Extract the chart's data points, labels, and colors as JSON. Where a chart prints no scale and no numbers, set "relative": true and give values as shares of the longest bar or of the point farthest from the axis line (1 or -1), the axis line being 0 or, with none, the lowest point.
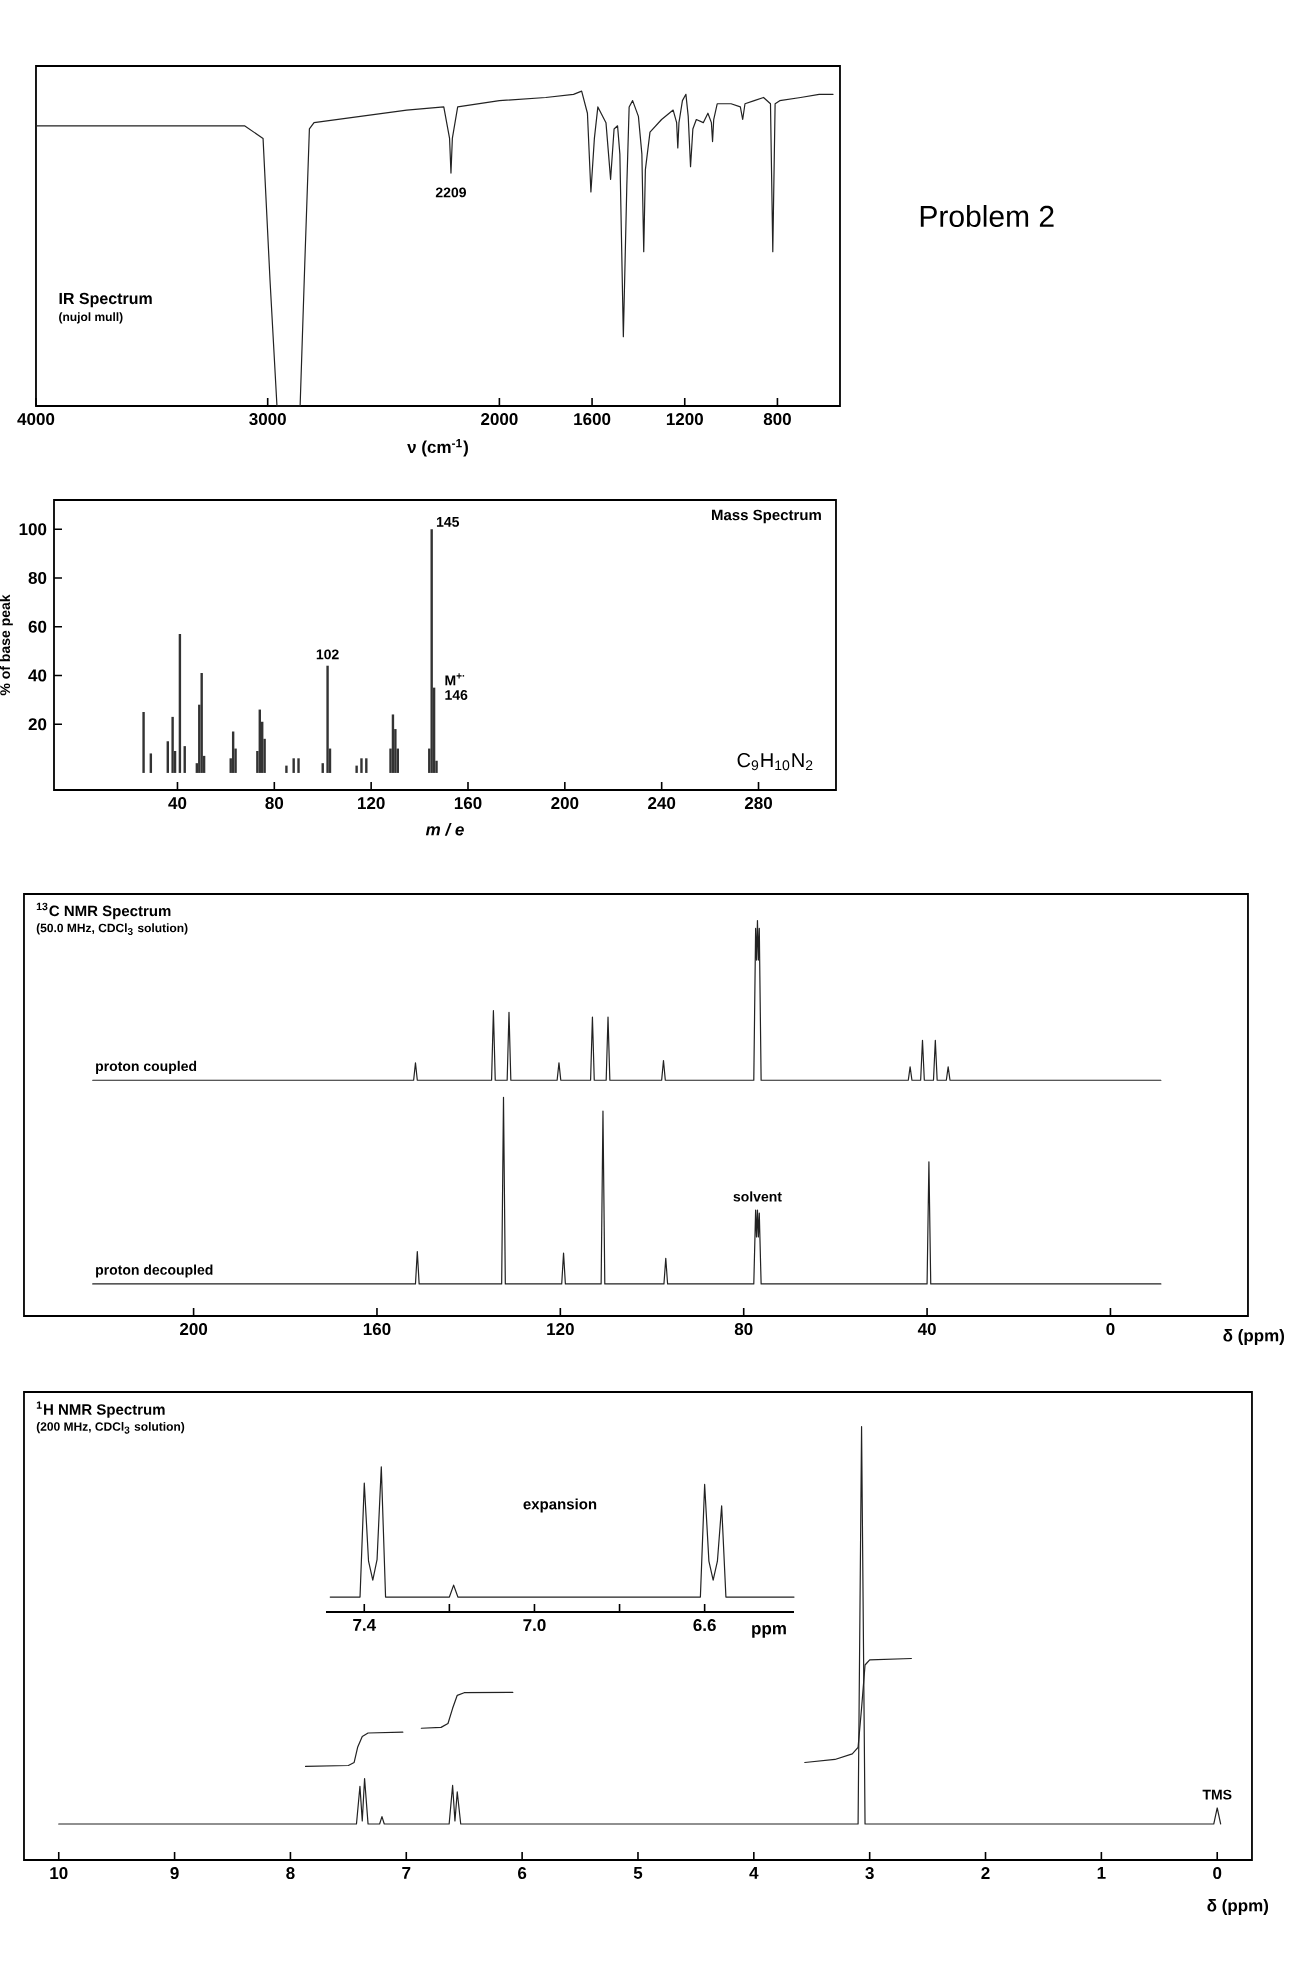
{
  "chart_data": [
    {
      "type": "line",
      "relative": true,
      "title": "IR Spectrum",
      "subtitle": "(nujol mull)",
      "xlabel": "ν (cm$^{-1}$)",
      "tick_labels": "x",
      "xlim": [
        4000,
        530
      ],
      "xticks": [
        4000,
        3000,
        2000,
        1600,
        1200,
        800
      ],
      "x": [
        4000,
        3500,
        3100,
        3020,
        2990,
        2960,
        2860,
        2840,
        2820,
        2800,
        2600,
        2400,
        2240,
        2215,
        2209,
        2203,
        2180,
        2000,
        1800,
        1680,
        1645,
        1620,
        1605,
        1590,
        1575,
        1540,
        1520,
        1505,
        1490,
        1480,
        1465,
        1450,
        1440,
        1425,
        1400,
        1385,
        1377,
        1370,
        1350,
        1300,
        1250,
        1235,
        1230,
        1225,
        1210,
        1195,
        1185,
        1175,
        1165,
        1150,
        1120,
        1100,
        1085,
        1080,
        1075,
        1060,
        1000,
        960,
        950,
        940,
        900,
        860,
        830,
        820,
        810,
        790,
        700,
        620,
        560
      ],
      "values": [
        0.89,
        0.89,
        0.89,
        0.85,
        0.4,
        0,
        0,
        0.45,
        0.88,
        0.9,
        0.92,
        0.94,
        0.95,
        0.85,
        0.74,
        0.85,
        0.95,
        0.97,
        0.98,
        0.99,
        1,
        0.93,
        0.68,
        0.85,
        0.95,
        0.9,
        0.72,
        0.88,
        0.89,
        0.8,
        0.22,
        0.7,
        0.95,
        0.97,
        0.92,
        0.8,
        0.49,
        0.75,
        0.87,
        0.91,
        0.94,
        0.9,
        0.82,
        0.9,
        0.97,
        0.99,
        0.92,
        0.76,
        0.88,
        0.91,
        0.9,
        0.93,
        0.9,
        0.84,
        0.91,
        0.96,
        0.96,
        0.95,
        0.91,
        0.96,
        0.97,
        0.98,
        0.96,
        0.49,
        0.96,
        0.97,
        0.98,
        0.99,
        0.99
      ],
      "color": "#222222",
      "annotations": [
        {
          "text": "2209",
          "x": 2209,
          "y": 0.74
        }
      ]
    },
    {
      "type": "other",
      "title": "Problem 2"
    },
    {
      "type": "bar",
      "title": "Mass Spectrum",
      "xlabel": "m / e",
      "ylabel": "% of base peak",
      "xlim": [
        -11,
        312
      ],
      "xticks": [
        40,
        80,
        120,
        160,
        200,
        240,
        280
      ],
      "ylim": [
        -7,
        112
      ],
      "yticks": [
        20,
        40,
        60,
        80,
        100
      ],
      "x": [
        26,
        29,
        36,
        38,
        39,
        41,
        43,
        48,
        49,
        50,
        51,
        62,
        63,
        64,
        73,
        74,
        75,
        76,
        85,
        88,
        90,
        100,
        102,
        103,
        114,
        116,
        118,
        128,
        129,
        130,
        131,
        144,
        145,
        146,
        147
      ],
      "values": [
        25,
        8,
        13,
        23,
        9,
        57,
        11,
        4,
        28,
        41,
        7,
        6,
        17,
        10,
        9,
        26,
        21,
        14,
        3,
        6,
        6,
        4,
        44,
        10,
        3,
        6,
        6,
        10,
        24,
        18,
        10,
        10,
        100,
        35,
        5
      ],
      "color": "#333333",
      "annotations": [
        {
          "text": "145",
          "x": 145,
          "y": 100
        },
        {
          "text": "102",
          "x": 102,
          "y": 44
        },
        {
          "text": "M$^{+·}$",
          "x": 146,
          "y": 35
        },
        {
          "text": "146",
          "x": 146,
          "y": 35
        },
        "C$_{9}$H$_{10}$N$_{2}$"
      ]
    },
    {
      "type": "line",
      "relative": true,
      "title": "$^{13}$C NMR Spectrum",
      "subtitle": "(50.0 MHz, CDCl$_{3}$ solution)",
      "xlabel": "δ (ppm)",
      "tick_labels": "x",
      "xlim": [
        237,
        -30
      ],
      "xticks": [
        200,
        160,
        120,
        80,
        40,
        0
      ],
      "series": [
        {
          "name": "proton coupled",
          "color": "#222222",
          "x": [
            222,
            152,
            151.6,
            151.2,
            135,
            134.6,
            134.2,
            131.6,
            131.2,
            130.8,
            120.7,
            120.3,
            119.9,
            113.4,
            113,
            112.6,
            110,
            109.6,
            109.2,
            97.9,
            97.5,
            97.1,
            77.8,
            77.4,
            77.2,
            77,
            76.8,
            76.6,
            76.2,
            44.1,
            43.7,
            43.3,
            41.4,
            41,
            40.6,
            38.6,
            38.2,
            37.8,
            35.8,
            35.4,
            35,
            -11
          ],
          "values": [
            0.596,
            0.596,
            0.64,
            0.596,
            0.596,
            0.772,
            0.596,
            0.596,
            0.768,
            0.596,
            0.596,
            0.64,
            0.596,
            0.596,
            0.756,
            0.596,
            0.596,
            0.756,
            0.596,
            0.596,
            0.646,
            0.596,
            0.596,
            0.98,
            0.9,
            1,
            0.9,
            0.98,
            0.596,
            0.596,
            0.63,
            0.596,
            0.596,
            0.697,
            0.596,
            0.596,
            0.697,
            0.596,
            0.596,
            0.63,
            0.596,
            0.596
          ]
        },
        {
          "name": "proton decoupled",
          "color": "#222222",
          "x": [
            222,
            151.6,
            151.2,
            150.8,
            132.8,
            132.4,
            132,
            119.7,
            119.3,
            118.9,
            111.1,
            110.7,
            110.3,
            97.4,
            97,
            96.6,
            77.8,
            77.4,
            77.2,
            77,
            76.8,
            76.6,
            76.2,
            40,
            39.6,
            39.2,
            -11
          ],
          "values": [
            0.081,
            0.081,
            0.163,
            0.081,
            0.081,
            0.553,
            0.081,
            0.081,
            0.159,
            0.081,
            0.081,
            0.518,
            0.081,
            0.081,
            0.146,
            0.081,
            0.081,
            0.268,
            0.2,
            0.268,
            0.2,
            0.26,
            0.081,
            0.081,
            0.39,
            0.081,
            0.081
          ]
        }
      ],
      "annotations": [
        {
          "text": "solvent",
          "x": 77,
          "y": 0.268
        }
      ]
    },
    {
      "type": "line",
      "relative": true,
      "title": "$^{1}$H NMR Spectrum",
      "subtitle": "(200 MHz, CDCl$_{3}$ solution)",
      "xlabel": "δ (ppm)",
      "tick_labels": "x",
      "xlim": [
        10.3,
        -0.3
      ],
      "xticks": [
        10,
        9,
        8,
        7,
        6,
        5,
        4,
        3,
        2,
        1,
        0
      ],
      "series": [
        {
          "color": "#222222",
          "x": [
            10,
            7.43,
            7.4,
            7.38,
            7.36,
            7.33,
            7.23,
            7.21,
            7.19,
            6.63,
            6.6,
            6.58,
            6.56,
            6.53,
            3.1,
            3.07,
            3.04,
            0.03,
            0,
            -0.03
          ],
          "values": [
            0.083,
            0.083,
            0.17,
            0.09,
            0.188,
            0.083,
            0.083,
            0.1,
            0.083,
            0.083,
            0.172,
            0.09,
            0.157,
            0.083,
            0.083,
            1,
            0.083,
            0.083,
            0.12,
            0.083
          ]
        },
        {
          "color": "#222222",
          "x": [
            7.87,
            7.5,
            7.45,
            7.42,
            7.38,
            7.33,
            7.03
          ],
          "values": [
            0.216,
            0.218,
            0.225,
            0.26,
            0.285,
            0.293,
            0.295
          ]
        },
        {
          "color": "#222222",
          "x": [
            6.87,
            6.7,
            6.64,
            6.6,
            6.56,
            6.5,
            6.08
          ],
          "values": [
            0.304,
            0.306,
            0.315,
            0.35,
            0.38,
            0.386,
            0.387
          ]
        },
        {
          "color": "#222222",
          "x": [
            3.56,
            3.3,
            3.15,
            3.1,
            3.07,
            3.04,
            3.0,
            2.64
          ],
          "values": [
            0.225,
            0.232,
            0.245,
            0.26,
            0.35,
            0.45,
            0.462,
            0.465
          ]
        }
      ],
      "annotations": [
        {
          "text": "TMS",
          "x": 0,
          "y": 0.12
        }
      ]
    },
    {
      "type": "line",
      "relative": true,
      "title": "expansion",
      "xlabel": "ppm",
      "tick_labels": "x",
      "xlim": [
        7.49,
        6.39
      ],
      "xticks": [
        {
          "value": 7.4,
          "label": "7.4"
        },
        {
          "value": 7.2,
          "label": null
        },
        {
          "value": 7.0,
          "label": "7.0"
        },
        {
          "value": 6.8,
          "label": null
        },
        {
          "value": 6.6,
          "label": "6.6"
        }
      ],
      "x": [
        7.48,
        7.41,
        7.4,
        7.39,
        7.38,
        7.37,
        7.36,
        7.35,
        7.2,
        7.19,
        7.18,
        6.61,
        6.6,
        6.59,
        6.58,
        6.57,
        6.56,
        6.55,
        6.39
      ],
      "values": [
        0.103,
        0.103,
        0.888,
        0.35,
        0.22,
        0.36,
        1,
        0.103,
        0.103,
        0.185,
        0.103,
        0.103,
        0.879,
        0.35,
        0.22,
        0.35,
        0.731,
        0.103,
        0.103
      ],
      "color": "#222222"
    }
  ]
}
